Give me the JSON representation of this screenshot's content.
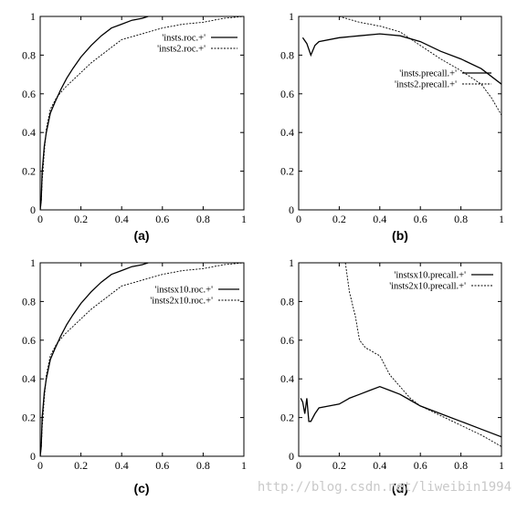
{
  "chart_data": [
    {
      "id": "a",
      "type": "line",
      "caption": "(a)",
      "xlim": [
        0,
        1
      ],
      "ylim": [
        0,
        1
      ],
      "x_ticks": [
        "0",
        "0.2",
        "0.4",
        "0.6",
        "0.8",
        "1"
      ],
      "y_ticks": [
        "0",
        "0.2",
        "0.4",
        "0.6",
        "0.8",
        "1"
      ],
      "legend_position": "top-right",
      "series": [
        {
          "name": "'insts.roc.+'",
          "style": "solid",
          "points": [
            [
              0,
              0
            ],
            [
              0.005,
              0.05
            ],
            [
              0.01,
              0.2
            ],
            [
              0.02,
              0.33
            ],
            [
              0.03,
              0.4
            ],
            [
              0.05,
              0.5
            ],
            [
              0.07,
              0.55
            ],
            [
              0.1,
              0.62
            ],
            [
              0.13,
              0.68
            ],
            [
              0.16,
              0.73
            ],
            [
              0.2,
              0.79
            ],
            [
              0.25,
              0.85
            ],
            [
              0.3,
              0.9
            ],
            [
              0.35,
              0.94
            ],
            [
              0.4,
              0.96
            ],
            [
              0.45,
              0.98
            ],
            [
              0.5,
              0.99
            ],
            [
              0.53,
              1.0
            ]
          ]
        },
        {
          "name": "'insts2.roc.+'",
          "style": "dashed",
          "points": [
            [
              0,
              0
            ],
            [
              0.005,
              0.04
            ],
            [
              0.01,
              0.15
            ],
            [
              0.02,
              0.3
            ],
            [
              0.03,
              0.42
            ],
            [
              0.05,
              0.52
            ],
            [
              0.08,
              0.58
            ],
            [
              0.12,
              0.63
            ],
            [
              0.15,
              0.66
            ],
            [
              0.2,
              0.71
            ],
            [
              0.25,
              0.76
            ],
            [
              0.3,
              0.8
            ],
            [
              0.35,
              0.84
            ],
            [
              0.4,
              0.88
            ],
            [
              0.5,
              0.91
            ],
            [
              0.6,
              0.94
            ],
            [
              0.7,
              0.96
            ],
            [
              0.8,
              0.97
            ],
            [
              0.9,
              0.99
            ],
            [
              1.0,
              1.0
            ]
          ]
        }
      ]
    },
    {
      "id": "b",
      "type": "line",
      "caption": "(b)",
      "xlim": [
        0,
        1
      ],
      "ylim": [
        0,
        1
      ],
      "x_ticks": [
        "0",
        "0.2",
        "0.4",
        "0.6",
        "0.8",
        "1"
      ],
      "y_ticks": [
        "0",
        "0.2",
        "0.4",
        "0.6",
        "0.8",
        "1"
      ],
      "legend_position": "center-right",
      "series": [
        {
          "name": "'insts.precall.+'",
          "style": "solid",
          "points": [
            [
              0.02,
              0.89
            ],
            [
              0.04,
              0.86
            ],
            [
              0.06,
              0.8
            ],
            [
              0.08,
              0.85
            ],
            [
              0.1,
              0.87
            ],
            [
              0.2,
              0.89
            ],
            [
              0.3,
              0.9
            ],
            [
              0.4,
              0.91
            ],
            [
              0.5,
              0.9
            ],
            [
              0.6,
              0.87
            ],
            [
              0.7,
              0.82
            ],
            [
              0.8,
              0.78
            ],
            [
              0.9,
              0.73
            ],
            [
              1.0,
              0.65
            ]
          ]
        },
        {
          "name": "'insts2.precall.+'",
          "style": "dashed",
          "points": [
            [
              0.2,
              1.0
            ],
            [
              0.3,
              0.97
            ],
            [
              0.4,
              0.95
            ],
            [
              0.5,
              0.92
            ],
            [
              0.6,
              0.85
            ],
            [
              0.7,
              0.78
            ],
            [
              0.8,
              0.72
            ],
            [
              0.9,
              0.65
            ],
            [
              0.95,
              0.58
            ],
            [
              1.0,
              0.49
            ]
          ]
        }
      ]
    },
    {
      "id": "c",
      "type": "line",
      "caption": "(c)",
      "xlim": [
        0,
        1
      ],
      "ylim": [
        0,
        1
      ],
      "x_ticks": [
        "0",
        "0.2",
        "0.4",
        "0.6",
        "0.8",
        "1"
      ],
      "y_ticks": [
        "0",
        "0.2",
        "0.4",
        "0.6",
        "0.8",
        "1"
      ],
      "legend_position": "top-right",
      "series": [
        {
          "name": "'instsx10.roc.+'",
          "style": "solid",
          "points": [
            [
              0,
              0
            ],
            [
              0.005,
              0.05
            ],
            [
              0.01,
              0.2
            ],
            [
              0.02,
              0.33
            ],
            [
              0.03,
              0.4
            ],
            [
              0.05,
              0.5
            ],
            [
              0.07,
              0.55
            ],
            [
              0.1,
              0.62
            ],
            [
              0.13,
              0.68
            ],
            [
              0.16,
              0.73
            ],
            [
              0.2,
              0.79
            ],
            [
              0.25,
              0.85
            ],
            [
              0.3,
              0.9
            ],
            [
              0.35,
              0.94
            ],
            [
              0.4,
              0.96
            ],
            [
              0.45,
              0.98
            ],
            [
              0.5,
              0.99
            ],
            [
              0.53,
              1.0
            ]
          ]
        },
        {
          "name": "'insts2x10.roc.+'",
          "style": "dashed",
          "points": [
            [
              0,
              0
            ],
            [
              0.005,
              0.04
            ],
            [
              0.01,
              0.15
            ],
            [
              0.02,
              0.3
            ],
            [
              0.03,
              0.42
            ],
            [
              0.05,
              0.52
            ],
            [
              0.08,
              0.58
            ],
            [
              0.12,
              0.63
            ],
            [
              0.15,
              0.66
            ],
            [
              0.2,
              0.71
            ],
            [
              0.25,
              0.76
            ],
            [
              0.3,
              0.8
            ],
            [
              0.35,
              0.84
            ],
            [
              0.4,
              0.88
            ],
            [
              0.5,
              0.91
            ],
            [
              0.6,
              0.94
            ],
            [
              0.7,
              0.96
            ],
            [
              0.8,
              0.97
            ],
            [
              0.9,
              0.99
            ],
            [
              1.0,
              1.0
            ]
          ]
        }
      ]
    },
    {
      "id": "d",
      "type": "line",
      "caption": "(d)",
      "xlim": [
        0,
        1
      ],
      "ylim": [
        0,
        1
      ],
      "x_ticks": [
        "0",
        "0.2",
        "0.4",
        "0.6",
        "0.8",
        "1"
      ],
      "y_ticks": [
        "0",
        "0.2",
        "0.4",
        "0.6",
        "0.8",
        "1"
      ],
      "legend_position": "top-right",
      "series": [
        {
          "name": "'instsx10.precall.+'",
          "style": "solid",
          "points": [
            [
              0.01,
              0.3
            ],
            [
              0.02,
              0.28
            ],
            [
              0.03,
              0.22
            ],
            [
              0.04,
              0.3
            ],
            [
              0.05,
              0.18
            ],
            [
              0.06,
              0.18
            ],
            [
              0.08,
              0.22
            ],
            [
              0.1,
              0.25
            ],
            [
              0.15,
              0.26
            ],
            [
              0.2,
              0.27
            ],
            [
              0.25,
              0.3
            ],
            [
              0.3,
              0.32
            ],
            [
              0.35,
              0.34
            ],
            [
              0.4,
              0.36
            ],
            [
              0.45,
              0.34
            ],
            [
              0.5,
              0.32
            ],
            [
              0.55,
              0.29
            ],
            [
              0.6,
              0.26
            ],
            [
              0.7,
              0.22
            ],
            [
              0.8,
              0.18
            ],
            [
              0.9,
              0.14
            ],
            [
              1.0,
              0.1
            ]
          ]
        },
        {
          "name": "'insts2x10.precall.+'",
          "style": "dashed",
          "points": [
            [
              0.23,
              1.0
            ],
            [
              0.25,
              0.85
            ],
            [
              0.28,
              0.72
            ],
            [
              0.3,
              0.6
            ],
            [
              0.33,
              0.56
            ],
            [
              0.35,
              0.55
            ],
            [
              0.38,
              0.53
            ],
            [
              0.4,
              0.52
            ],
            [
              0.45,
              0.42
            ],
            [
              0.5,
              0.36
            ],
            [
              0.55,
              0.3
            ],
            [
              0.6,
              0.26
            ],
            [
              0.7,
              0.21
            ],
            [
              0.8,
              0.16
            ],
            [
              0.9,
              0.11
            ],
            [
              1.0,
              0.05
            ]
          ]
        }
      ]
    }
  ],
  "watermark": "http://blog.csdn.net/liweibin1994"
}
